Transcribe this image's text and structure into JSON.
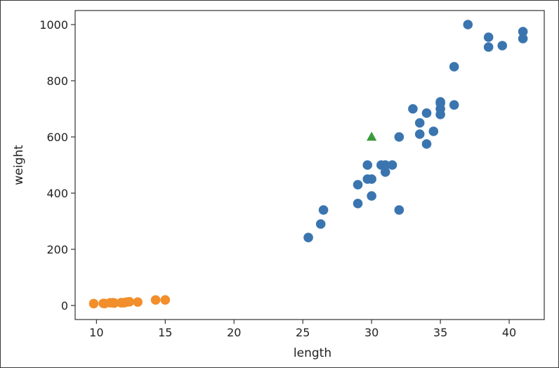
{
  "chart_data": {
    "type": "scatter",
    "xlabel": "length",
    "ylabel": "weight",
    "xlim": [
      8.45,
      42.55
    ],
    "ylim": [
      -50,
      1050
    ],
    "xticks": [
      10,
      15,
      20,
      25,
      30,
      35,
      40
    ],
    "yticks": [
      0,
      200,
      400,
      600,
      800,
      1000
    ],
    "grid": false,
    "series": [
      {
        "marker": "circle",
        "color": "#3a75b0",
        "x": [
          25.4,
          26.3,
          26.5,
          29.0,
          29.0,
          29.7,
          29.7,
          30.0,
          30.0,
          30.7,
          31.0,
          31.0,
          31.5,
          32.0,
          32.0,
          33.0,
          33.5,
          33.5,
          34.0,
          34.0,
          34.5,
          35.0,
          35.0,
          35.0,
          35.0,
          36.0,
          36.0,
          37.0,
          38.5,
          38.5,
          39.5,
          41.0,
          41.0
        ],
        "y": [
          242,
          290,
          340,
          363,
          430,
          450,
          500,
          390,
          450,
          500,
          475,
          500,
          500,
          340,
          600,
          700,
          610,
          650,
          575,
          685,
          620,
          680,
          700,
          725,
          720,
          714,
          850,
          1000,
          920,
          955,
          925,
          975,
          950
        ]
      },
      {
        "marker": "circle",
        "color": "#f28e2b",
        "x": [
          9.8,
          10.5,
          10.6,
          11.0,
          11.2,
          11.3,
          11.8,
          11.8,
          12.0,
          12.2,
          12.4,
          13.0,
          14.3,
          15.0
        ],
        "y": [
          6.7,
          7.5,
          7.0,
          9.7,
          9.8,
          8.7,
          10.0,
          9.9,
          9.8,
          12.2,
          13.4,
          12.2,
          19.7,
          19.9
        ]
      },
      {
        "marker": "triangle",
        "color": "#3a9a3a",
        "x": [
          30
        ],
        "y": [
          600
        ]
      }
    ]
  }
}
